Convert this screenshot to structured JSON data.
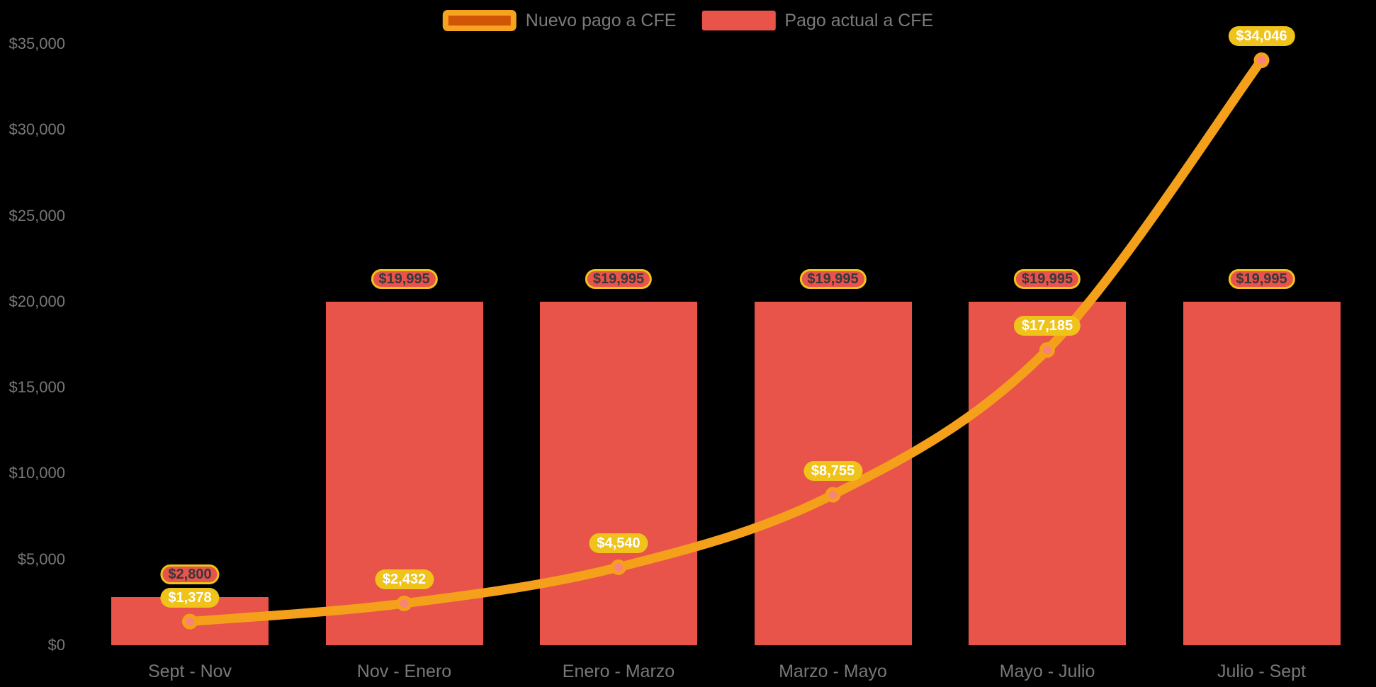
{
  "colors": {
    "background": "#000000",
    "bar": "#E8534A",
    "line": "#F5A01B",
    "point_fill": "#F9837A",
    "point_ring": "#F5A01B",
    "pill_yellow": "#EFC319",
    "pill_text_white": "#FFFFFF",
    "pill_text_dark": "#37383C",
    "legend_line_fill": "#D05506",
    "legend_line_border": "#F6A41F",
    "axis_text": "#787878",
    "legend_text": "#7B7B7B"
  },
  "legend": {
    "items": [
      {
        "label": "Nuevo pago a CFE",
        "swatch": "line-series-swatch"
      },
      {
        "label": "Pago actual a CFE",
        "swatch": "bar-series-swatch"
      }
    ]
  },
  "chart_data": {
    "type": "bar",
    "subtype": "bar+line combo",
    "title": "",
    "xlabel": "",
    "ylabel": "",
    "grid": false,
    "legend_position": "top-center",
    "categories": [
      "Sept - Nov",
      "Nov - Enero",
      "Enero - Marzo",
      "Marzo - Mayo",
      "Mayo - Julio",
      "Julio - Sept"
    ],
    "series": [
      {
        "name": "Nuevo pago a CFE",
        "type": "line",
        "values": [
          1378,
          2432,
          4540,
          8755,
          17185,
          34046
        ],
        "labels": [
          "$1,378",
          "$2,432",
          "$4,540",
          "$8,755",
          "$17,185",
          "$34,046"
        ]
      },
      {
        "name": "Pago actual a CFE",
        "type": "bar",
        "values": [
          2800,
          19995,
          19995,
          19995,
          19995,
          19995
        ],
        "labels": [
          "$2,800",
          "$19,995",
          "$19,995",
          "$19,995",
          "$19,995",
          "$19,995"
        ]
      }
    ],
    "y_axis": {
      "ticks": [
        "$0",
        "$5,000",
        "$10,000",
        "$15,000",
        "$20,000",
        "$25,000",
        "$30,000",
        "$35,000"
      ],
      "tick_values": [
        0,
        5000,
        10000,
        15000,
        20000,
        25000,
        30000,
        35000
      ],
      "ylim": [
        0,
        35000
      ]
    }
  }
}
